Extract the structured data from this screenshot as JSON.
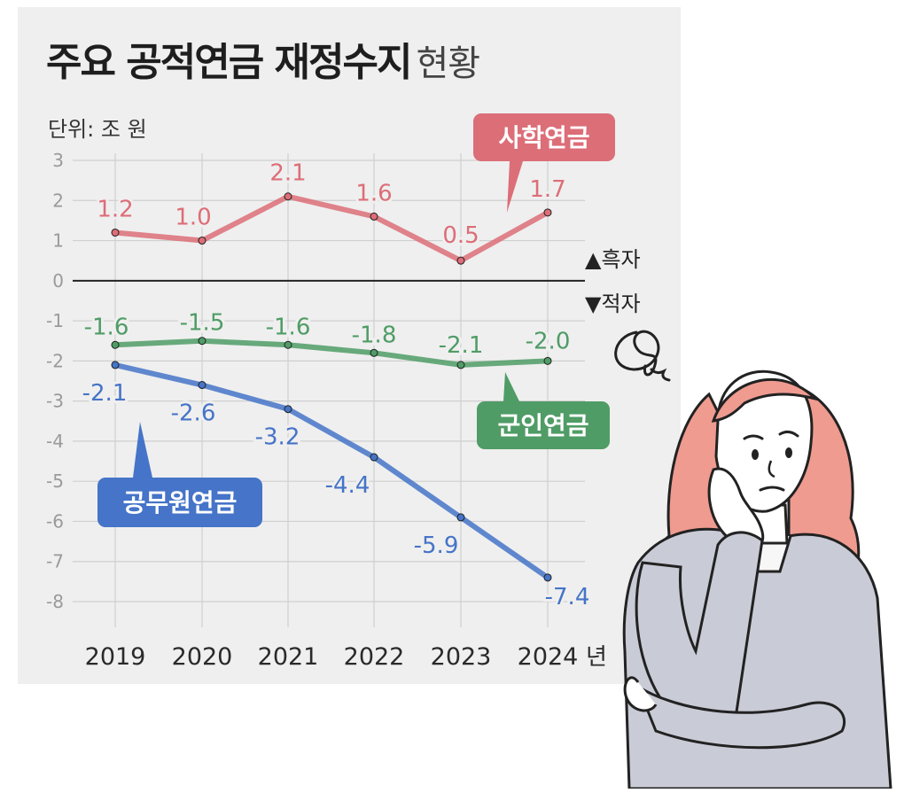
{
  "title": {
    "main": "주요 공적연금 재정수지",
    "sub": "현황"
  },
  "unit": "단위: 조 원",
  "indicators": {
    "surplus": "▲흑자",
    "deficit": "▼적자"
  },
  "year_suffix": "년",
  "colors": {
    "background": "#efefef",
    "private_school": "#dc6e78",
    "military": "#4f9c66",
    "civil_servant": "#4574c8",
    "grid": "#cfcfcf",
    "zero_line": "#222222"
  },
  "illustration_icon": "worried-woman-illustration",
  "chart_data": {
    "type": "line",
    "title": "주요 공적연금 재정수지 현황",
    "ylabel": "단위: 조 원",
    "xlabel": "",
    "ylim": [
      -8,
      3
    ],
    "yticks": [
      3,
      2,
      1,
      0,
      -1,
      -2,
      -3,
      -4,
      -5,
      -6,
      -7,
      -8
    ],
    "x": [
      "2019",
      "2020",
      "2021",
      "2022",
      "2023",
      "2024"
    ],
    "grid": true,
    "series": [
      {
        "name": "사학연금",
        "key": "private_school",
        "values": [
          1.2,
          1.0,
          2.1,
          1.6,
          0.5,
          1.7
        ],
        "labels": [
          "1.2",
          "1.0",
          "2.1",
          "1.6",
          "0.5",
          "1.7"
        ]
      },
      {
        "name": "군인연금",
        "key": "military",
        "values": [
          -1.6,
          -1.5,
          -1.6,
          -1.8,
          -2.1,
          -2.0
        ],
        "labels": [
          "-1.6",
          "-1.5",
          "-1.6",
          "-1.8",
          "-2.1",
          "-2.0"
        ]
      },
      {
        "name": "공무원연금",
        "key": "civil_servant",
        "values": [
          -2.1,
          -2.6,
          -3.2,
          -4.4,
          -5.9,
          -7.4
        ],
        "labels": [
          "-2.1",
          "-2.6",
          "-3.2",
          "-4.4",
          "-5.9",
          "-7.4"
        ]
      }
    ]
  }
}
